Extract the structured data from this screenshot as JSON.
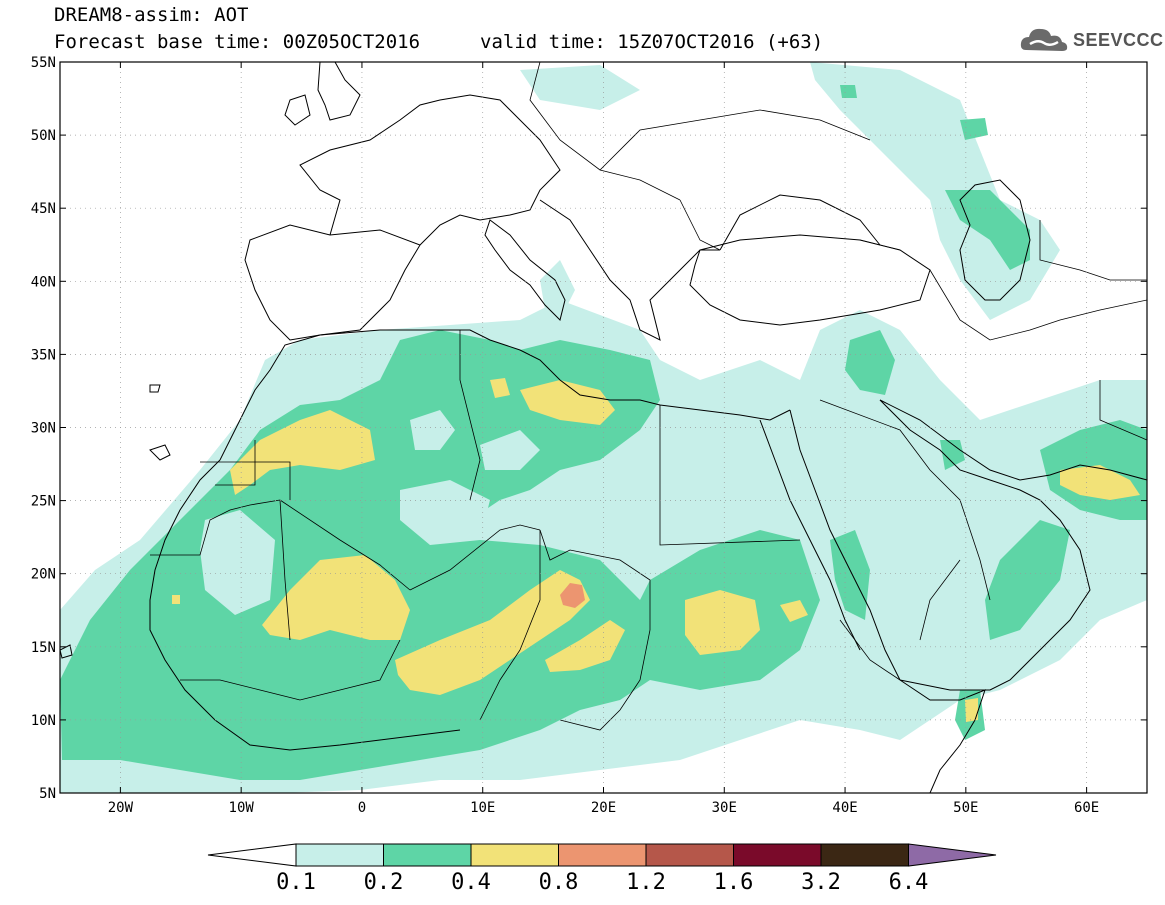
{
  "header": {
    "title_line1": "DREAM8-assim: AOT",
    "base_time": "Forecast base time: 00Z05OCT2016",
    "valid_time": "valid time: 15Z07OCT2016 (+63)"
  },
  "logo": {
    "text": "SEEVCCC",
    "icon": "cloud-logo-icon"
  },
  "map": {
    "lon_range": [
      -25,
      65
    ],
    "lat_range": [
      5,
      55
    ],
    "lat_labels": [
      "55N",
      "50N",
      "45N",
      "40N",
      "35N",
      "30N",
      "25N",
      "20N",
      "15N",
      "10N",
      "5N"
    ],
    "lon_labels": [
      "20W",
      "10W",
      "0",
      "10E",
      "20E",
      "30E",
      "40E",
      "50E",
      "60E"
    ],
    "grid": true
  },
  "colorbar": {
    "labels": [
      "0.1",
      "0.2",
      "0.4",
      "0.8",
      "1.2",
      "1.6",
      "3.2",
      "6.4"
    ],
    "colors": [
      "#ffffff",
      "#c7efe9",
      "#5ed5a6",
      "#f2e278",
      "#ec9570",
      "#b5574a",
      "#7a0a2a",
      "#3b2714",
      "#8e6aa6"
    ]
  },
  "colors": {
    "c1": "#c7efe9",
    "c2": "#5ed5a6",
    "c3": "#f2e278",
    "c4": "#ec9570"
  }
}
